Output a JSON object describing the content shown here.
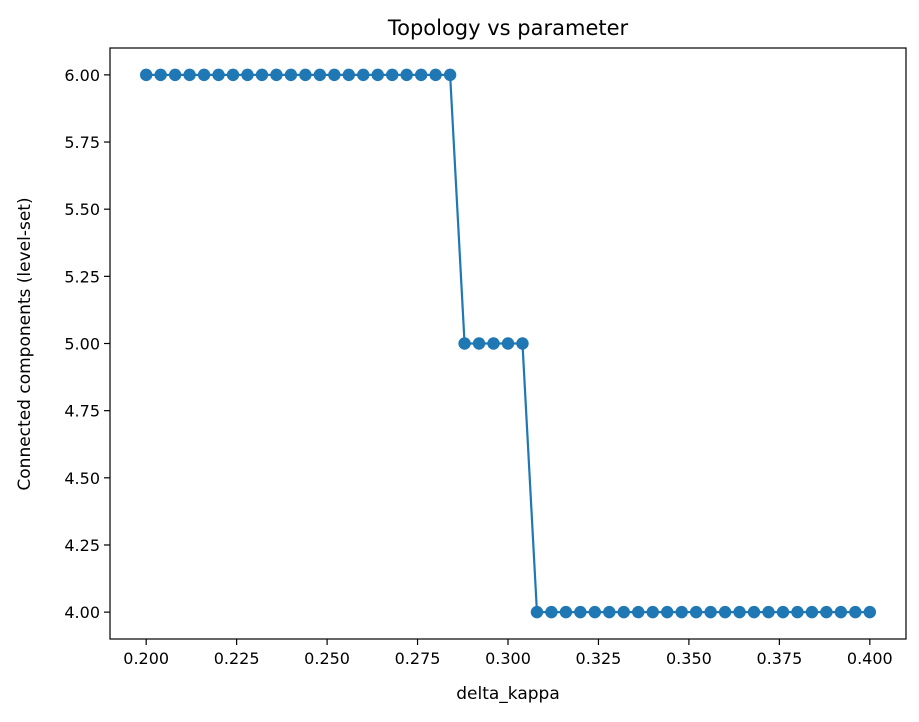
{
  "chart_data": {
    "type": "line",
    "title": "Topology vs parameter",
    "xlabel": "delta_kappa",
    "ylabel": "Connected components (level-set)",
    "xlim": [
      0.19,
      0.41
    ],
    "ylim": [
      3.9,
      6.1
    ],
    "x_ticks": [
      0.2,
      0.225,
      0.25,
      0.275,
      0.3,
      0.325,
      0.35,
      0.375,
      0.4
    ],
    "x_tick_labels": [
      "0.200",
      "0.225",
      "0.250",
      "0.275",
      "0.300",
      "0.325",
      "0.350",
      "0.375",
      "0.400"
    ],
    "y_ticks": [
      4.0,
      4.25,
      4.5,
      4.75,
      5.0,
      5.25,
      5.5,
      5.75,
      6.0
    ],
    "y_tick_labels": [
      "4.00",
      "4.25",
      "4.50",
      "4.75",
      "5.00",
      "5.25",
      "5.50",
      "5.75",
      "6.00"
    ],
    "grid": false,
    "marker": "circle",
    "color": "#1f77b4",
    "series": [
      {
        "x": [
          0.2,
          0.204,
          0.208,
          0.212,
          0.216,
          0.22,
          0.224,
          0.228,
          0.232,
          0.236,
          0.24,
          0.244,
          0.248,
          0.252,
          0.256,
          0.26,
          0.264,
          0.268,
          0.272,
          0.276,
          0.28,
          0.284,
          0.288,
          0.292,
          0.296,
          0.3,
          0.304,
          0.308,
          0.312,
          0.316,
          0.32,
          0.324,
          0.328,
          0.332,
          0.336,
          0.34,
          0.344,
          0.348,
          0.352,
          0.356,
          0.36,
          0.364,
          0.368,
          0.372,
          0.376,
          0.38,
          0.384,
          0.388,
          0.392,
          0.396,
          0.4
        ],
        "y": [
          6,
          6,
          6,
          6,
          6,
          6,
          6,
          6,
          6,
          6,
          6,
          6,
          6,
          6,
          6,
          6,
          6,
          6,
          6,
          6,
          6,
          6,
          5,
          5,
          5,
          5,
          5,
          4,
          4,
          4,
          4,
          4,
          4,
          4,
          4,
          4,
          4,
          4,
          4,
          4,
          4,
          4,
          4,
          4,
          4,
          4,
          4,
          4,
          4,
          4,
          4
        ]
      }
    ]
  }
}
